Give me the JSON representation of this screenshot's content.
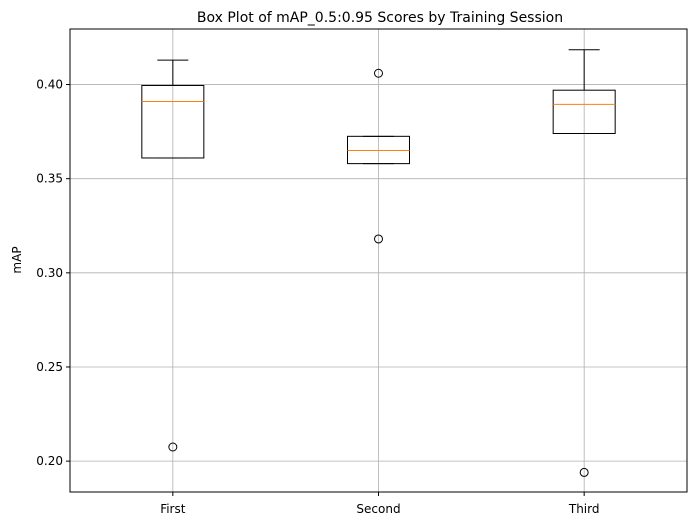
{
  "chart_data": {
    "type": "box",
    "title": "Box Plot of mAP_0.5:0.95 Scores by Training Session",
    "xlabel": "",
    "ylabel": "mAP",
    "categories": [
      "First",
      "Second",
      "Third"
    ],
    "boxes": [
      {
        "name": "First",
        "whisker_low": 0.361,
        "q1": 0.361,
        "median": 0.391,
        "q3": 0.3995,
        "whisker_high": 0.413,
        "outliers": [
          0.2075
        ]
      },
      {
        "name": "Second",
        "whisker_low": 0.358,
        "q1": 0.358,
        "median": 0.365,
        "q3": 0.3725,
        "whisker_high": 0.3725,
        "outliers": [
          0.406,
          0.318
        ]
      },
      {
        "name": "Third",
        "whisker_low": 0.374,
        "q1": 0.374,
        "median": 0.3895,
        "q3": 0.397,
        "whisker_high": 0.4185,
        "outliers": [
          0.194
        ]
      }
    ],
    "yticks": [
      0.2,
      0.25,
      0.3,
      0.35,
      0.4
    ],
    "ytick_labels": [
      "0.20",
      "0.25",
      "0.30",
      "0.35",
      "0.40"
    ],
    "ylim": [
      0.1836,
      0.4295
    ],
    "grid": true,
    "colors": {
      "box": "#000000",
      "median": "#ff7f0e",
      "grid": "#b0b0b0"
    }
  }
}
